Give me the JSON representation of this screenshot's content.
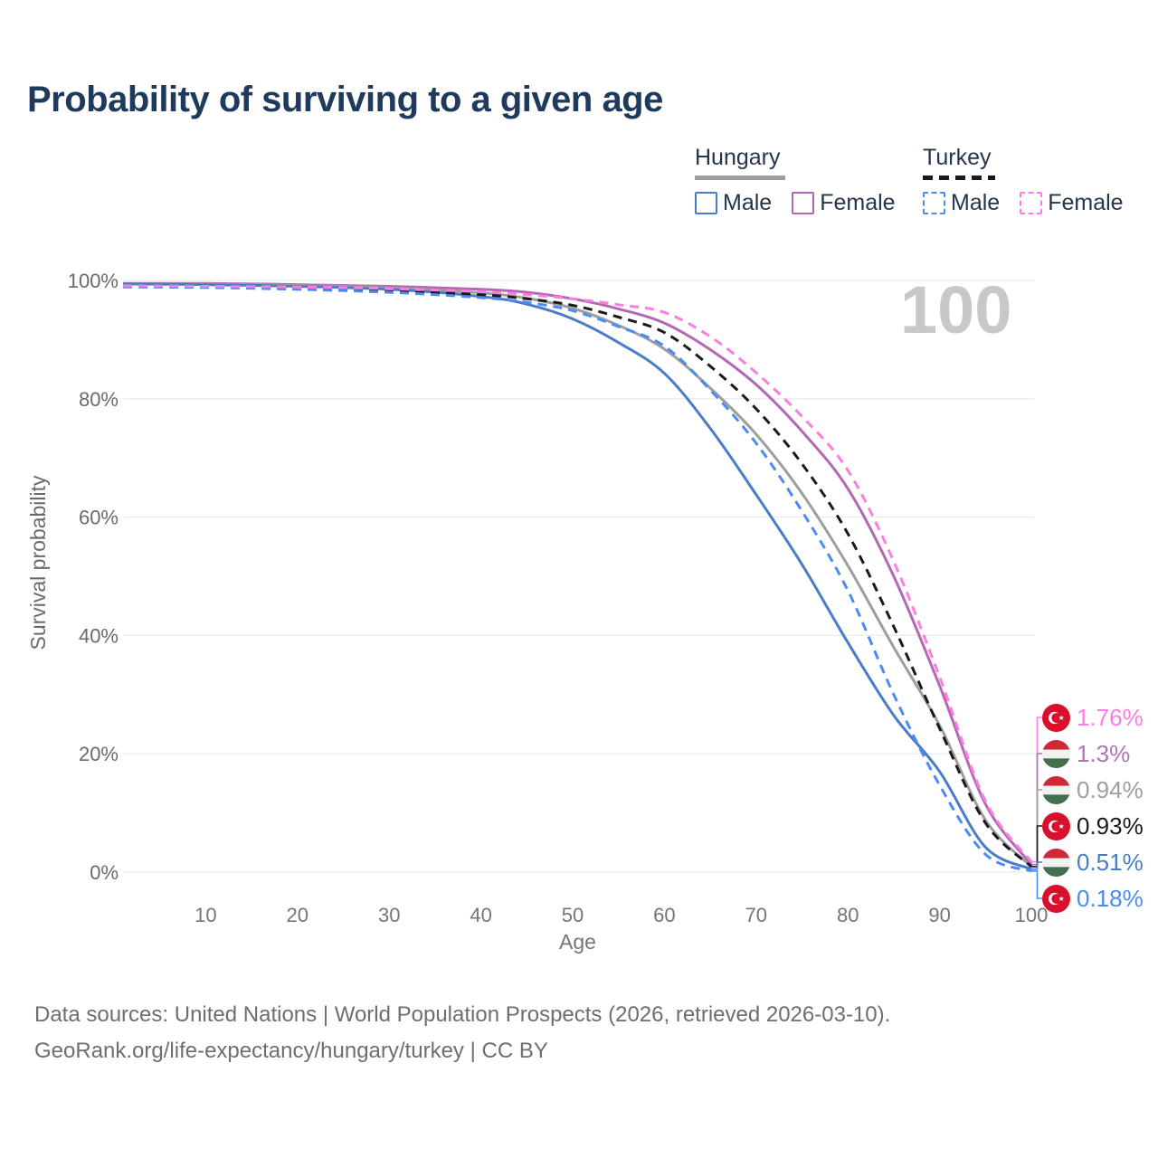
{
  "header": {
    "title": "Probability of surviving to a given age"
  },
  "legend": {
    "hungary": {
      "label": "Hungary",
      "line_color": "#9e9e9e",
      "male": {
        "label": "Male",
        "color": "#4a7cc7"
      },
      "female": {
        "label": "Female",
        "color": "#b468b4"
      }
    },
    "turkey": {
      "label": "Turkey",
      "line_color": "#1a1a1a",
      "male": {
        "label": "Male",
        "color": "#4b8bf4"
      },
      "female": {
        "label": "Female",
        "color": "#ff7ce0"
      }
    }
  },
  "chart_data": {
    "type": "line",
    "title": "Probability of surviving to a given age",
    "xlabel": "Age",
    "ylabel": "Survival probability",
    "xlim": [
      0,
      100
    ],
    "ylim": [
      0,
      100
    ],
    "grid": "horizontal",
    "legend_position": "top-right",
    "watermark": "100",
    "x_ticks": [
      10,
      20,
      30,
      40,
      50,
      60,
      70,
      80,
      90,
      100
    ],
    "y_tick_values": [
      0,
      20,
      40,
      60,
      80,
      100
    ],
    "y_tick_labels": [
      "0%",
      "20%",
      "40%",
      "60%",
      "80%",
      "100%"
    ],
    "ages": [
      1,
      10,
      20,
      30,
      40,
      45,
      50,
      55,
      60,
      65,
      70,
      75,
      80,
      85,
      90,
      95,
      100
    ],
    "series": [
      {
        "id": "hungary-female",
        "name": "Hungary Female",
        "color": "#b468b4",
        "dashed": false,
        "values": [
          99.5,
          99.5,
          99.3,
          99.0,
          98.5,
          98.0,
          96.9,
          95.2,
          92.8,
          88.3,
          82.4,
          74.5,
          64.8,
          50.0,
          31.5,
          11.5,
          1.3
        ]
      },
      {
        "id": "hungary-total",
        "name": "Hungary",
        "color": "#9e9e9e",
        "dashed": false,
        "values": [
          99.45,
          99.4,
          99.15,
          98.75,
          97.9,
          97.0,
          95.3,
          92.4,
          88.4,
          81.8,
          74.0,
          64.0,
          51.8,
          38.0,
          24.8,
          8.8,
          0.94
        ]
      },
      {
        "id": "hungary-male",
        "name": "Hungary Male",
        "color": "#4a7cc7",
        "dashed": false,
        "values": [
          99.4,
          99.3,
          99.0,
          98.5,
          97.3,
          96.0,
          93.5,
          89.5,
          84.3,
          75.0,
          63.8,
          52.0,
          38.8,
          26.5,
          17.0,
          4.2,
          0.51
        ]
      },
      {
        "id": "turkey-total",
        "name": "Turkey",
        "color": "#1a1a1a",
        "dashed": true,
        "values": [
          99.0,
          98.9,
          98.7,
          98.3,
          97.6,
          96.9,
          95.8,
          93.8,
          91.2,
          85.5,
          78.3,
          69.0,
          57.2,
          41.5,
          24.3,
          8.3,
          0.93
        ]
      },
      {
        "id": "turkey-male",
        "name": "Turkey Male",
        "color": "#4b8bf4",
        "dashed": true,
        "values": [
          98.9,
          98.8,
          98.5,
          98.0,
          97.1,
          96.3,
          94.9,
          92.2,
          88.9,
          81.5,
          72.5,
          61.0,
          47.6,
          30.0,
          14.7,
          3.0,
          0.18
        ]
      },
      {
        "id": "turkey-female",
        "name": "Turkey Female",
        "color": "#ff7ce0",
        "dashed": true,
        "values": [
          99.1,
          99.0,
          98.9,
          98.6,
          98.1,
          97.6,
          96.9,
          95.9,
          94.6,
          90.5,
          84.4,
          77.0,
          67.9,
          52.5,
          33.0,
          12.0,
          1.76
        ]
      }
    ],
    "end_labels": [
      {
        "flag": "turkey",
        "series": "turkey-female",
        "text": "1.76%",
        "color": "#ff7ce0",
        "value": 1.76
      },
      {
        "flag": "hungary",
        "series": "hungary-female",
        "text": "1.3%",
        "color": "#af74b4",
        "value": 1.3
      },
      {
        "flag": "hungary",
        "series": "hungary-total",
        "text": "0.94%",
        "color": "#9e9e9e",
        "value": 0.94
      },
      {
        "flag": "turkey",
        "series": "turkey-total",
        "text": "0.93%",
        "color": "#1a1a1a",
        "value": 0.93
      },
      {
        "flag": "hungary",
        "series": "hungary-male",
        "text": "0.51%",
        "color": "#4a7cc7",
        "value": 0.51
      },
      {
        "flag": "turkey",
        "series": "turkey-male",
        "text": "0.18%",
        "color": "#4b8bf4",
        "value": 0.18
      }
    ]
  },
  "footer": {
    "line1": "Data sources: United Nations | World Population Prospects (2026, retrieved 2026-03-10).",
    "line2": "GeoRank.org/life-expectancy/hungary/turkey | CC BY"
  }
}
